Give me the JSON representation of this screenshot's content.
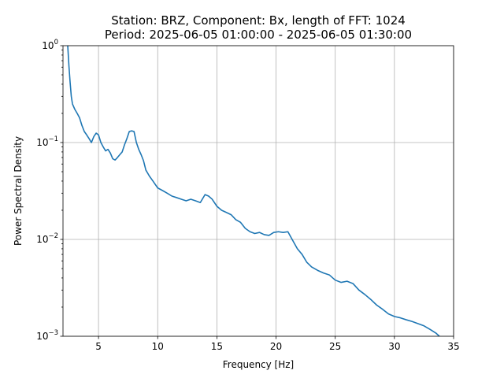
{
  "chart_data": {
    "type": "line",
    "title_line1": "Station: BRZ, Component: Bx, length of FFT: 1024",
    "title_line2": "Period: 2025-06-05 01:00:00 - 2025-06-05 01:30:00",
    "xlabel": "Frequency [Hz]",
    "ylabel": "Power Spectral Density",
    "xlim": [
      2.0,
      35.0
    ],
    "ylim": [
      0.001,
      1.0
    ],
    "yscale": "log",
    "grid": true,
    "line_color": "#1f77b4",
    "x_ticks": [
      5,
      10,
      15,
      20,
      25,
      30,
      35
    ],
    "y_ticks": [
      {
        "value": 0.001,
        "base": "10",
        "exp": "−3"
      },
      {
        "value": 0.01,
        "base": "10",
        "exp": "−2"
      },
      {
        "value": 0.1,
        "base": "10",
        "exp": "−1"
      },
      {
        "value": 1.0,
        "base": "10",
        "exp": "0"
      }
    ],
    "series": [
      {
        "x": [
          2.4,
          2.5,
          2.6,
          2.7,
          2.8,
          3.0,
          3.2,
          3.4,
          3.6,
          3.8,
          4.0,
          4.2,
          4.4,
          4.6,
          4.8,
          5.0,
          5.2,
          5.4,
          5.6,
          5.8,
          6.0,
          6.2,
          6.4,
          6.6,
          6.8,
          7.0,
          7.2,
          7.4,
          7.6,
          7.8,
          8.0,
          8.2,
          8.4,
          8.6,
          8.8,
          9.0,
          9.3,
          9.6,
          10.0,
          10.4,
          10.8,
          11.2,
          11.6,
          12.0,
          12.4,
          12.8,
          13.2,
          13.6,
          14.0,
          14.3,
          14.6,
          15.0,
          15.4,
          15.8,
          16.2,
          16.6,
          17.0,
          17.4,
          17.8,
          18.2,
          18.6,
          19.0,
          19.4,
          19.8,
          20.2,
          20.6,
          21.0,
          21.4,
          21.8,
          22.2,
          22.6,
          23.0,
          23.5,
          24.0,
          24.5,
          25.0,
          25.5,
          26.0,
          26.5,
          27.0,
          27.5,
          28.0,
          28.5,
          29.0,
          29.5,
          30.0,
          30.5,
          31.0,
          31.5,
          32.0,
          32.5,
          33.0,
          33.5,
          33.8
        ],
        "y": [
          1.0,
          0.62,
          0.42,
          0.3,
          0.25,
          0.22,
          0.2,
          0.18,
          0.15,
          0.13,
          0.12,
          0.11,
          0.1,
          0.115,
          0.125,
          0.12,
          0.1,
          0.09,
          0.082,
          0.085,
          0.078,
          0.068,
          0.066,
          0.07,
          0.075,
          0.08,
          0.095,
          0.11,
          0.13,
          0.132,
          0.13,
          0.1,
          0.085,
          0.075,
          0.065,
          0.052,
          0.045,
          0.04,
          0.034,
          0.032,
          0.03,
          0.028,
          0.027,
          0.026,
          0.025,
          0.026,
          0.025,
          0.024,
          0.029,
          0.028,
          0.026,
          0.022,
          0.02,
          0.019,
          0.018,
          0.016,
          0.015,
          0.013,
          0.012,
          0.0115,
          0.0118,
          0.0112,
          0.011,
          0.0118,
          0.012,
          0.0118,
          0.012,
          0.0098,
          0.008,
          0.007,
          0.0058,
          0.0052,
          0.0048,
          0.0045,
          0.0043,
          0.0038,
          0.0036,
          0.0037,
          0.0035,
          0.003,
          0.0027,
          0.0024,
          0.0021,
          0.0019,
          0.0017,
          0.0016,
          0.00155,
          0.00148,
          0.00142,
          0.00135,
          0.00128,
          0.00118,
          0.00108,
          0.001
        ]
      }
    ]
  }
}
